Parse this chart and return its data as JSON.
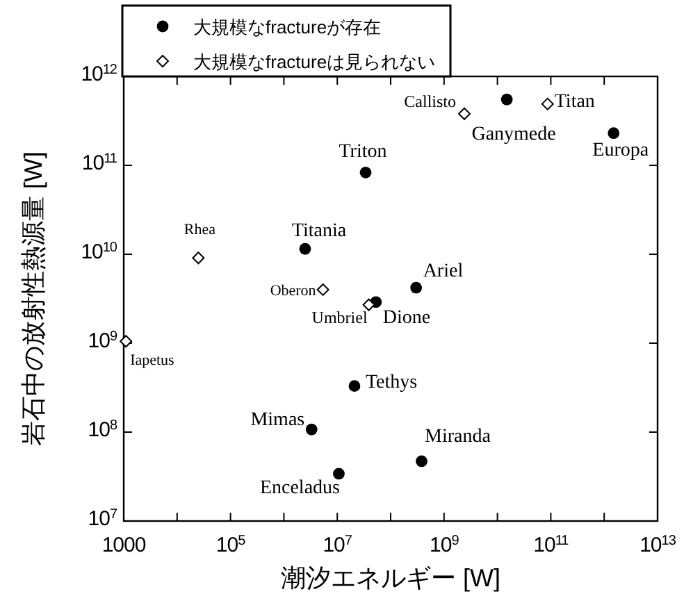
{
  "chart_data": {
    "type": "scatter",
    "xlabel": "潮汐エネルギー [W]",
    "ylabel": "岩石中の放射性熱源量 [W]",
    "log": "xy",
    "legend": "top left",
    "grid": false,
    "xlim": [
      1000,
      10000000000000.0
    ],
    "ylim": [
      10000000.0,
      1000000000000.0
    ],
    "xticks": [
      1000,
      {
        "value": 10000.0,
        "label": null
      },
      {
        "value": 100000.0,
        "label": "10$^{5}$"
      },
      {
        "value": 1000000.0,
        "label": null
      },
      {
        "value": 10000000.0,
        "label": "10$^{7}$"
      },
      {
        "value": 100000000.0,
        "label": null
      },
      {
        "value": 1000000000.0,
        "label": "10$^{9}$"
      },
      {
        "value": 10000000000.0,
        "label": null
      },
      {
        "value": 100000000000.0,
        "label": "10$^{11}$"
      },
      {
        "value": 1000000000000.0,
        "label": null
      },
      {
        "value": 10000000000000.0,
        "label": "10$^{13}$"
      }
    ],
    "yticks": [
      {
        "value": 10000000.0,
        "label": "10$^{7}$"
      },
      {
        "value": 100000000.0,
        "label": "10$^{8}$"
      },
      {
        "value": 1000000000.0,
        "label": "10$^{9}$"
      },
      {
        "value": 10000000000.0,
        "label": "10$^{10}$"
      },
      {
        "value": 100000000000.0,
        "label": "10$^{11}$"
      },
      {
        "value": 1000000000000.0,
        "label": "10$^{12}$"
      }
    ],
    "series": [
      {
        "name": "大規模なfractureが存在",
        "color": "#000000",
        "marker": "circle",
        "x": [
          2500000.0,
          53000000.0,
          300000000.0,
          21000000.0,
          3300000.0,
          380000000.0,
          10700000.0,
          34000000.0,
          15000000000.0,
          1500000000000.0
        ],
        "values": [
          11500000000.0,
          2900000000.0,
          4200000000.0,
          330000000.0,
          107000000.0,
          47000000.0,
          34000000.0,
          83000000000.0,
          550000000000.0,
          230000000000.0
        ]
      },
      {
        "name": "大規模なfractureは見られない",
        "color": "#000000",
        "marker": "diamond",
        "x": [
          1100.0,
          25000.0,
          5400000.0,
          39000000.0,
          2400000000.0,
          87000000000.0
        ],
        "values": [
          1050000000.0,
          9100000000.0,
          4000000000.0,
          2700000000.0,
          380000000000.0,
          490000000000.0
        ]
      }
    ],
    "annotations": [
      {
        "text": "Titania",
        "x": 2500000.0,
        "y": 11500000000.0
      },
      {
        "text": "Dione",
        "x": 53000000.0,
        "y": 2900000000.0
      },
      {
        "text": "Ariel",
        "x": 300000000.0,
        "y": 4200000000.0
      },
      {
        "text": "Tethys",
        "x": 21000000.0,
        "y": 330000000.0
      },
      {
        "text": "Mimas",
        "x": 3300000.0,
        "y": 107000000.0
      },
      {
        "text": "Miranda",
        "x": 380000000.0,
        "y": 47000000.0
      },
      {
        "text": "Enceladus",
        "x": 10700000.0,
        "y": 34000000.0
      },
      {
        "text": "Triton",
        "x": 34000000.0,
        "y": 83000000000.0
      },
      {
        "text": "Ganymede",
        "x": 15000000000.0,
        "y": 550000000000.0
      },
      {
        "text": "Europa",
        "x": 1500000000000.0,
        "y": 230000000000.0
      },
      {
        "text": "Iapetus",
        "x": 1100.0,
        "y": 1050000000.0
      },
      {
        "text": "Rhea",
        "x": 25000.0,
        "y": 9100000000.0
      },
      {
        "text": "Oberon",
        "x": 5400000.0,
        "y": 4000000000.0
      },
      {
        "text": "Umbriel",
        "x": 39000000.0,
        "y": 2700000000.0
      },
      {
        "text": "Callisto",
        "x": 2400000000.0,
        "y": 380000000000.0
      },
      {
        "text": "Titan",
        "x": 87000000000.0,
        "y": 490000000000.0
      }
    ]
  }
}
